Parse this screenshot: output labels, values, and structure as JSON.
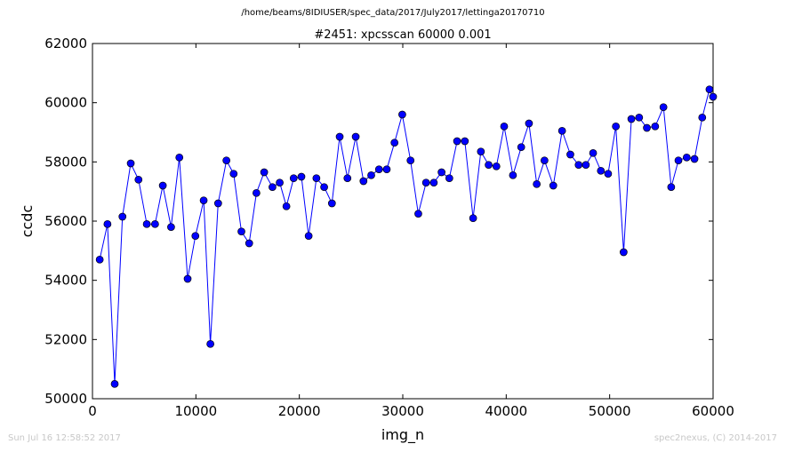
{
  "header": {
    "path": "/home/beams/8IDIUSER/spec_data/2017/July2017/lettinga20170710"
  },
  "footer": {
    "timestamp": "Sun Jul 16 12:58:52 2017",
    "credit": "spec2nexus, (C) 2014-2017"
  },
  "colors": {
    "series": "#0000ff",
    "marker_edge": "#000000",
    "axis": "#000000"
  },
  "chart_data": {
    "type": "line",
    "title": "#2451: xpcsscan 60000 0.001",
    "xlabel": "img_n",
    "ylabel": "ccdc",
    "xlim": [
      0,
      60000
    ],
    "ylim": [
      50000,
      62000
    ],
    "xticks": [
      0,
      10000,
      20000,
      30000,
      40000,
      50000,
      60000
    ],
    "yticks": [
      50000,
      52000,
      54000,
      56000,
      58000,
      60000,
      62000
    ],
    "xtick_labels": [
      "0",
      "10000",
      "20000",
      "30000",
      "40000",
      "50000",
      "60000"
    ],
    "ytick_labels": [
      "50000",
      "52000",
      "54000",
      "56000",
      "58000",
      "60000",
      "62000"
    ],
    "grid": false,
    "series": [
      {
        "markers": "circle",
        "x": [
          700,
          1450,
          2150,
          2900,
          3700,
          4450,
          5250,
          6050,
          6800,
          7600,
          8400,
          9200,
          9950,
          10750,
          11400,
          12150,
          12950,
          13650,
          14400,
          15150,
          15850,
          16600,
          17400,
          18100,
          18750,
          19450,
          20200,
          20900,
          21650,
          22400,
          23150,
          23900,
          24650,
          25450,
          26200,
          26950,
          27700,
          28450,
          29200,
          29950,
          30750,
          31500,
          32250,
          33000,
          33750,
          34500,
          35250,
          36000,
          36800,
          37550,
          38300,
          39050,
          39800,
          40650,
          41450,
          42200,
          42950,
          43700,
          44550,
          45400,
          46200,
          47000,
          47700,
          48400,
          49150,
          49850,
          50600,
          51350,
          52100,
          52850,
          53600,
          54400,
          55200,
          55950,
          56650,
          57450,
          58200,
          58950,
          59650,
          60000
        ],
        "y": [
          54700,
          55900,
          50500,
          56150,
          57950,
          57400,
          55900,
          55900,
          57200,
          55800,
          58150,
          54050,
          55500,
          56700,
          51850,
          56600,
          58050,
          57600,
          55650,
          55250,
          56950,
          57650,
          57150,
          57300,
          56500,
          57450,
          57500,
          55500,
          57450,
          57150,
          56600,
          58850,
          57450,
          58850,
          57350,
          57550,
          57750,
          57750,
          58650,
          59600,
          58050,
          56250,
          57300,
          57300,
          57650,
          57450,
          58700,
          58700,
          56100,
          58350,
          57900,
          57850,
          59200,
          57550,
          58500,
          59300,
          57250,
          58050,
          57200,
          59050,
          58250,
          57900,
          57900,
          58300,
          57700,
          57600,
          59200,
          54950,
          59450,
          59500,
          59150,
          59200,
          59850,
          57150,
          58050,
          58150,
          58100,
          59500,
          60450,
          60200
        ]
      }
    ]
  }
}
